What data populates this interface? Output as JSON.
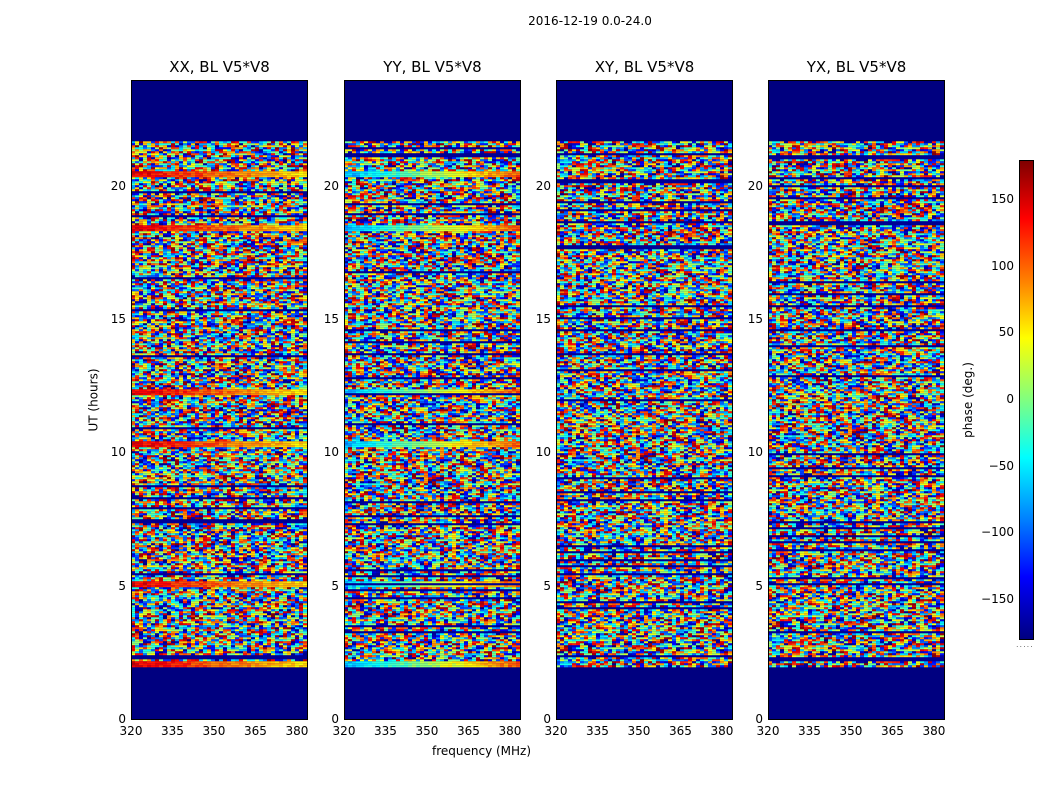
{
  "suptitle": "2016-12-19 0.0-24.0",
  "colors": {
    "low": "#000080",
    "mid": "#80ff80",
    "high": "#800000"
  },
  "chart_data": {
    "type": "heatmap",
    "panels": [
      {
        "title": "XX, BL V5*V8",
        "phase_sign": 1
      },
      {
        "title": "YY, BL V5*V8",
        "phase_sign": -1
      },
      {
        "title": "XY, BL V5*V8",
        "phase_sign": 0
      },
      {
        "title": "YX, BL V5*V8",
        "phase_sign": 0
      }
    ],
    "x": {
      "label": "frequency (MHz)",
      "range": [
        320,
        384
      ],
      "ticks": [
        "320",
        "335",
        "350",
        "365",
        "380"
      ],
      "tick_values": [
        320,
        335,
        350,
        365,
        380
      ]
    },
    "y": {
      "label": "UT (hours)",
      "range": [
        0,
        24
      ],
      "ticks": [
        "0",
        "5",
        "10",
        "15",
        "20"
      ],
      "tick_values": [
        0,
        5,
        10,
        15,
        20
      ]
    },
    "data_range_hours": [
      2,
      21.7
    ],
    "colorbar": {
      "label": "phase (deg.)",
      "range": [
        -180,
        180
      ],
      "ticks": [
        "150",
        "100",
        "50",
        "0",
        "−50",
        "−100",
        "−150"
      ],
      "tick_values": [
        150,
        100,
        50,
        0,
        -50,
        -100,
        -150
      ]
    }
  }
}
